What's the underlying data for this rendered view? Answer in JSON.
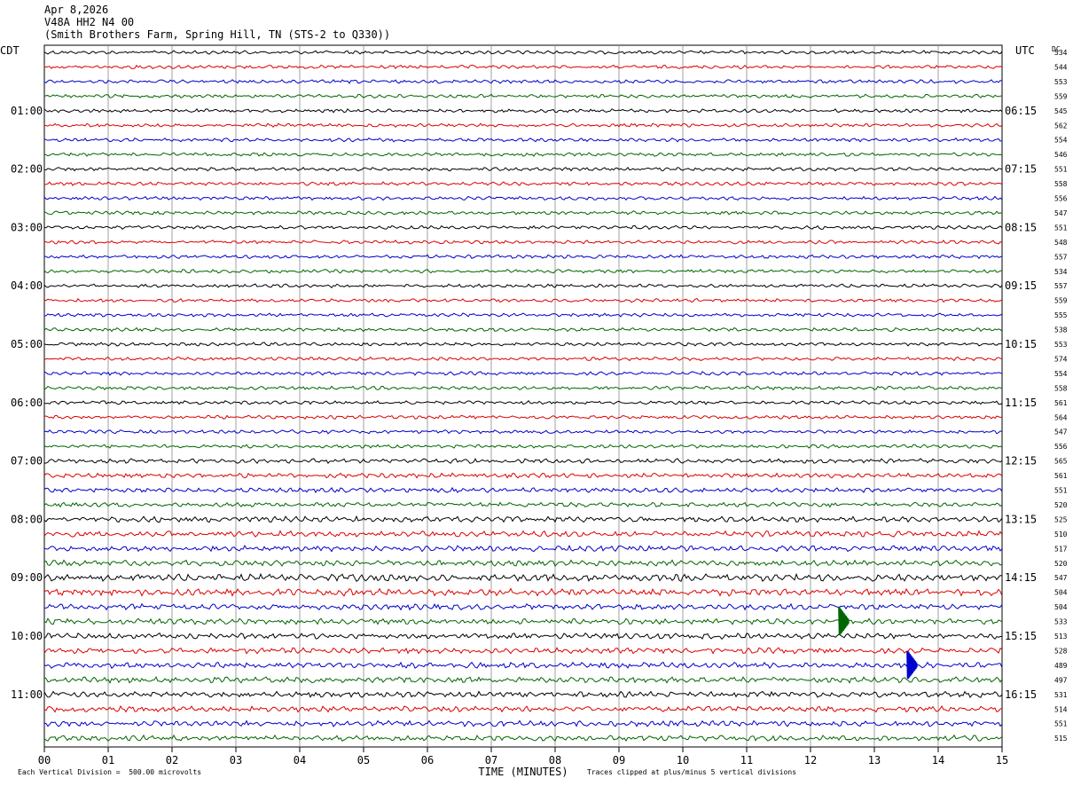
{
  "header": {
    "date": "Apr 8,2026",
    "channel": "V48A HH2 N4 00",
    "station": "(Smith Brothers Farm, Spring Hill, TN (STS-2 to Q330))"
  },
  "chart_data": {
    "type": "line",
    "title": "Apr 8,2026",
    "xlabel": "TIME (MINUTES)",
    "left_axis_label": "CDT",
    "right_axis_label": "UTC",
    "dc_label": "DC",
    "x_ticks": [
      "00",
      "01",
      "02",
      "03",
      "04",
      "05",
      "06",
      "07",
      "08",
      "09",
      "10",
      "11",
      "12",
      "13",
      "14",
      "15"
    ],
    "xlim": [
      0,
      15
    ],
    "row_colors": [
      "#000000",
      "#dd0000",
      "#0000cc",
      "#006600"
    ],
    "left_times": [
      "01:00",
      "02:00",
      "03:00",
      "04:00",
      "05:00",
      "06:00",
      "07:00",
      "08:00",
      "09:00",
      "10:00",
      "11:00"
    ],
    "right_times": [
      "06:15",
      "07:15",
      "08:15",
      "09:15",
      "10:15",
      "11:15",
      "12:15",
      "13:15",
      "14:15",
      "15:15",
      "16:15"
    ],
    "dc_offsets": [
      534,
      544,
      553,
      559,
      545,
      562,
      554,
      546,
      551,
      558,
      556,
      547,
      551,
      548,
      557,
      534,
      557,
      559,
      555,
      538,
      553,
      574,
      554,
      558,
      561,
      564,
      547,
      556,
      565,
      561,
      551,
      520,
      525,
      510,
      517,
      520,
      547,
      504,
      504,
      533,
      513,
      528,
      489,
      497,
      531,
      514,
      551,
      515
    ],
    "events": [
      {
        "row": 39,
        "minute": 12.45,
        "amplitude": "clipped"
      },
      {
        "row": 42,
        "minute": 13.52,
        "amplitude": "clipped"
      }
    ],
    "footer_left": "Each Vertical Division =  500.00 microvolts",
    "footer_right": "Traces clipped at plus/minus 5 vertical divisions"
  }
}
